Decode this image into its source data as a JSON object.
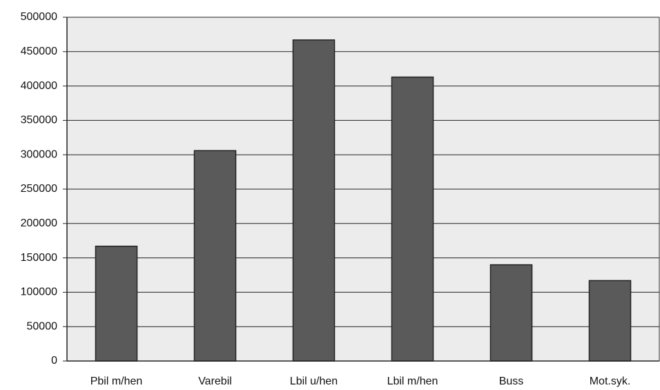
{
  "chart_data": {
    "type": "bar",
    "categories": [
      "Pbil m/hen",
      "Varebil",
      "Lbil u/hen",
      "Lbil m/hen",
      "Buss",
      "Mot.syk."
    ],
    "values": [
      167000,
      306000,
      467000,
      413000,
      140000,
      117000
    ],
    "color": "#5a5a5a",
    "ylim": [
      0,
      500000
    ],
    "yticks": [
      0,
      50000,
      100000,
      150000,
      200000,
      250000,
      300000,
      350000,
      400000,
      450000,
      500000
    ],
    "grid": true
  }
}
